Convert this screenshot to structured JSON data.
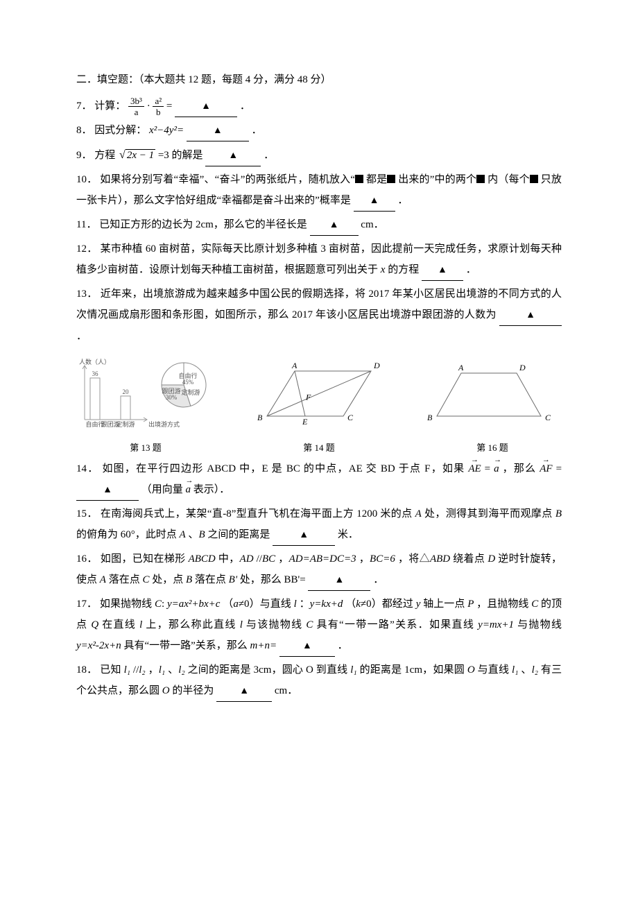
{
  "section_header": "二．填空题：（本大题共 12 题，每题 4 分，满分 48 分）",
  "blank_marker": "▲",
  "q7": {
    "num": "7．",
    "pre": "计算：",
    "frac1_num": "3b³",
    "frac1_den": "a",
    "dot": "·",
    "frac2_num": "a²",
    "frac2_den": "b",
    "eq": " = ",
    "end": "．"
  },
  "q8": {
    "num": "8．",
    "pre": "因式分解：",
    "expr": "x²−4y²=",
    "end": "．"
  },
  "q9": {
    "num": "9．",
    "pre": "方程",
    "radicand": "2x − 1",
    "post": "=3 的解是",
    "end": "．"
  },
  "q10": {
    "num": "10．",
    "t1": "如果将分别写着“幸福”、“奋斗”的两张纸片，随机放入“",
    "t2": "都是",
    "t3": "出来的”中的两个",
    "t4": "内（每个",
    "t5": "只放一张卡片），那么文字恰好组成“幸福都是奋斗出来的”概率是",
    "end": "．"
  },
  "q11": {
    "num": "11．",
    "text": "已知正方形的边长为 2cm，那么它的半径长是",
    "unit": "cm．"
  },
  "q12": {
    "num": "12．",
    "t1": "某市种植 60 亩树苗，实际每天比原计划多种植 3 亩树苗，因此提前一天完成任务，求原计划每天种植多少亩树苗．设原计划每天种植工亩树苗，根据题意可列出关于 ",
    "var": "x",
    "t2": " 的方程",
    "end": "．"
  },
  "q13": {
    "num": "13．",
    "text": "近年来，出境旅游成为越来越多中国公民的假期选择，将 2017 年某小区居民出境游的不同方式的人次情况画成扇形图和条形图，如图所示，那么 2017 年该小区居民出境游中跟团游的人数为",
    "end": "．"
  },
  "figs": {
    "cap13": "第 13 题",
    "cap14": "第 14 题",
    "cap16": "第 16 题",
    "bar": {
      "y_label": "人数（人）",
      "x_label": "出境游方式",
      "cats": [
        "自由行",
        "跟团游",
        "定制游"
      ],
      "vals": [
        36,
        null,
        20
      ],
      "shown_labels": [
        "36",
        "",
        "20"
      ],
      "axis_color": "#9a9a9a",
      "bar_border": "#9a9a9a",
      "bar_fill": "#ffffff",
      "font_size": 9
    },
    "pie": {
      "slices": [
        {
          "label": "自由行",
          "sub": "45%",
          "start": -90,
          "sweep": 162,
          "color": "#ffffff"
        },
        {
          "label": "跟团游",
          "sub": "30%",
          "start": 72,
          "sweep": 108,
          "color": "#e6e6e6"
        },
        {
          "label": "定制游",
          "sub": "",
          "start": 180,
          "sweep": 90,
          "color": "#ffffff"
        }
      ],
      "stroke": "#8a8a8a",
      "font_size": 9
    },
    "para": {
      "pts": {
        "A": "A",
        "B": "B",
        "C": "C",
        "D": "D",
        "E": "E",
        "F": "F"
      },
      "stroke": "#6a6a6a"
    },
    "trap": {
      "pts": {
        "A": "A",
        "B": "B",
        "C": "C",
        "D": "D"
      },
      "stroke": "#6a6a6a"
    }
  },
  "q14": {
    "num": "14．",
    "t1": "如图，在平行四边形 ABCD 中，E 是 BC 的中点，AE 交 BD 于点 F，如果",
    "vec1": "AE",
    "eq1": " = ",
    "a1": "a",
    "t2": "，那么",
    "vec2": "AF",
    "eq2": "=",
    "t3": "（用向量",
    "a2": "a",
    "t4": "表示）．"
  },
  "q15": {
    "num": "15．",
    "t1": "在南海阅兵式上，某架“直-8”型直升飞机在海平面上方 1200 米的点 ",
    "A": "A",
    "t2": " 处，测得其到海平而观摩点 ",
    "B": "B",
    "t3": " 的俯角为 60°，此时点 ",
    "A2": "A",
    "t4": "、",
    "B2": "B",
    "t5": " 之间的距离是",
    "unit": "米．"
  },
  "q16": {
    "num": "16．",
    "t1": "如图，已知在梯形 ",
    "ABCD": "ABCD",
    "t2": " 中，",
    "AD": "AD",
    "par": "//",
    "BC": "BC",
    "t3": "，",
    "eqs": "AD=AB=DC=3",
    "t4": "，",
    "bc6": "BC=6",
    "t5": "，将△",
    "ABD": "ABD",
    "t6": " 绕着点 ",
    "D": "D",
    "t7": " 逆时针旋转，使点 ",
    "A2": "A",
    "t8": " 落在点 ",
    "C": "C",
    "t9": " 处，点 ",
    "Bp": "B",
    "t10": " 落在点 ",
    "Bpr": "B'",
    "t11": "处，那么 BB'=",
    "end": "．"
  },
  "q17": {
    "num": "17．",
    "t1": "如果抛物线 ",
    "Cl": "C",
    "t1b": ": ",
    "eq1": "y=ax²+bx+c",
    "t2": "（",
    "a": "a",
    "ne1": "≠0）与直线 ",
    "l": "l",
    "t3": "：",
    "eq2": "y=kx+d",
    "t4": "（",
    "k": "k",
    "ne2": "≠0）都经过 ",
    "yax": "y",
    "t5": " 轴上一点 ",
    "P": "P",
    "t6": "，且抛物线 ",
    "C2": "C",
    "t7": " 的顶点 ",
    "Q": "Q",
    "t8": " 在直线 ",
    "l2": "l",
    "t9": " 上，那么称此直线 ",
    "l3": "l",
    "t10": " 与该抛物线 ",
    "C3": "C",
    "t11": " 具有“一带一路”关系．如果直线 ",
    "eq3": "y=mx+1",
    "t12": " 与抛物线 ",
    "eq4": "y=x²-2x+n",
    "t13": " 具有“一带一路”关系，那么 ",
    "mn": "m+n=",
    "end": "．"
  },
  "q18": {
    "num": "18．",
    "t1": "已知 ",
    "l1": "l₁",
    "par": "//",
    "l2": "l₂",
    "t2": "，",
    "l1b": "l₁",
    "t3": "、",
    "l2b": "l₂",
    "t4": " 之间的距离是 3cm，圆心 O 到直线 ",
    "l1c": "l₁",
    "t5": " 的距离是 1cm，如果圆 ",
    "O": "O",
    "t6": " 与直线 ",
    "l1d": "l₁",
    "t7": "、",
    "l2c": "l₂",
    "t8": " 有三个公共点，那么圆 ",
    "O2": "O",
    "t9": " 的半径为",
    "unit": "cm．"
  }
}
